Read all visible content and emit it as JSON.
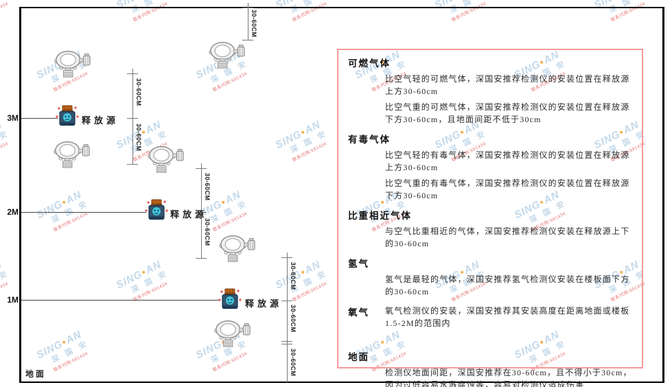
{
  "watermark": {
    "brand_left": "SING",
    "brand_dot": "●",
    "brand_right": "AN",
    "cn": "深 国 安",
    "contact": "联系代购:681434",
    "color_blue": "#b9d2e6",
    "color_orange": "#f2a73a",
    "color_red": "#e06060"
  },
  "diagram": {
    "axis_labels": {
      "m3": "3M",
      "m2": "2M",
      "m1": "1M",
      "ground": "地面"
    },
    "dim_label": "30-60CM",
    "release_source_label": "释放源"
  },
  "panel": {
    "border_color": "#f49a9a",
    "sections": [
      {
        "heading": "可燃气体",
        "paragraphs": [
          "比空气轻的可燃气体，深国安推荐检测仪的安装位置在释放源上方30-60cm",
          "比空气重的可燃气体，深国安推荐检测仪的安装位置在释放源下方30-60cm，且地面间距不低于30cm"
        ]
      },
      {
        "heading": "有毒气体",
        "paragraphs": [
          "比空气轻的有毒气体，深国安推荐检测仪的安装位置在释放源上方30-60cm",
          "比空气重的有毒气体，深国安推荐检测仪的安装位置在释放源下方30-60cm"
        ]
      },
      {
        "heading": "比重相近气体",
        "paragraphs": [
          "与空气比重相近的气体，深国安推荐检测仪安装在释放源上下的30-60cm"
        ]
      },
      {
        "heading": "氢气",
        "paragraphs": [
          "氢气是最轻的气体，深国安推荐氢气检测仪安装在楼板面下方的30-60cm"
        ]
      },
      {
        "heading": "氧气",
        "paragraphs": [
          "氧气检测仪的安装，深国安推荐其安装高度在距离地面或楼板1.5-2M的范围内"
        ]
      },
      {
        "heading": "地面",
        "paragraphs": [
          "检测仪地面间距，深国安推荐在30-60cm，且不得小于30cm，因为过低容易水溅腐蚀等，容易对检测仪造成伤害"
        ]
      }
    ]
  }
}
